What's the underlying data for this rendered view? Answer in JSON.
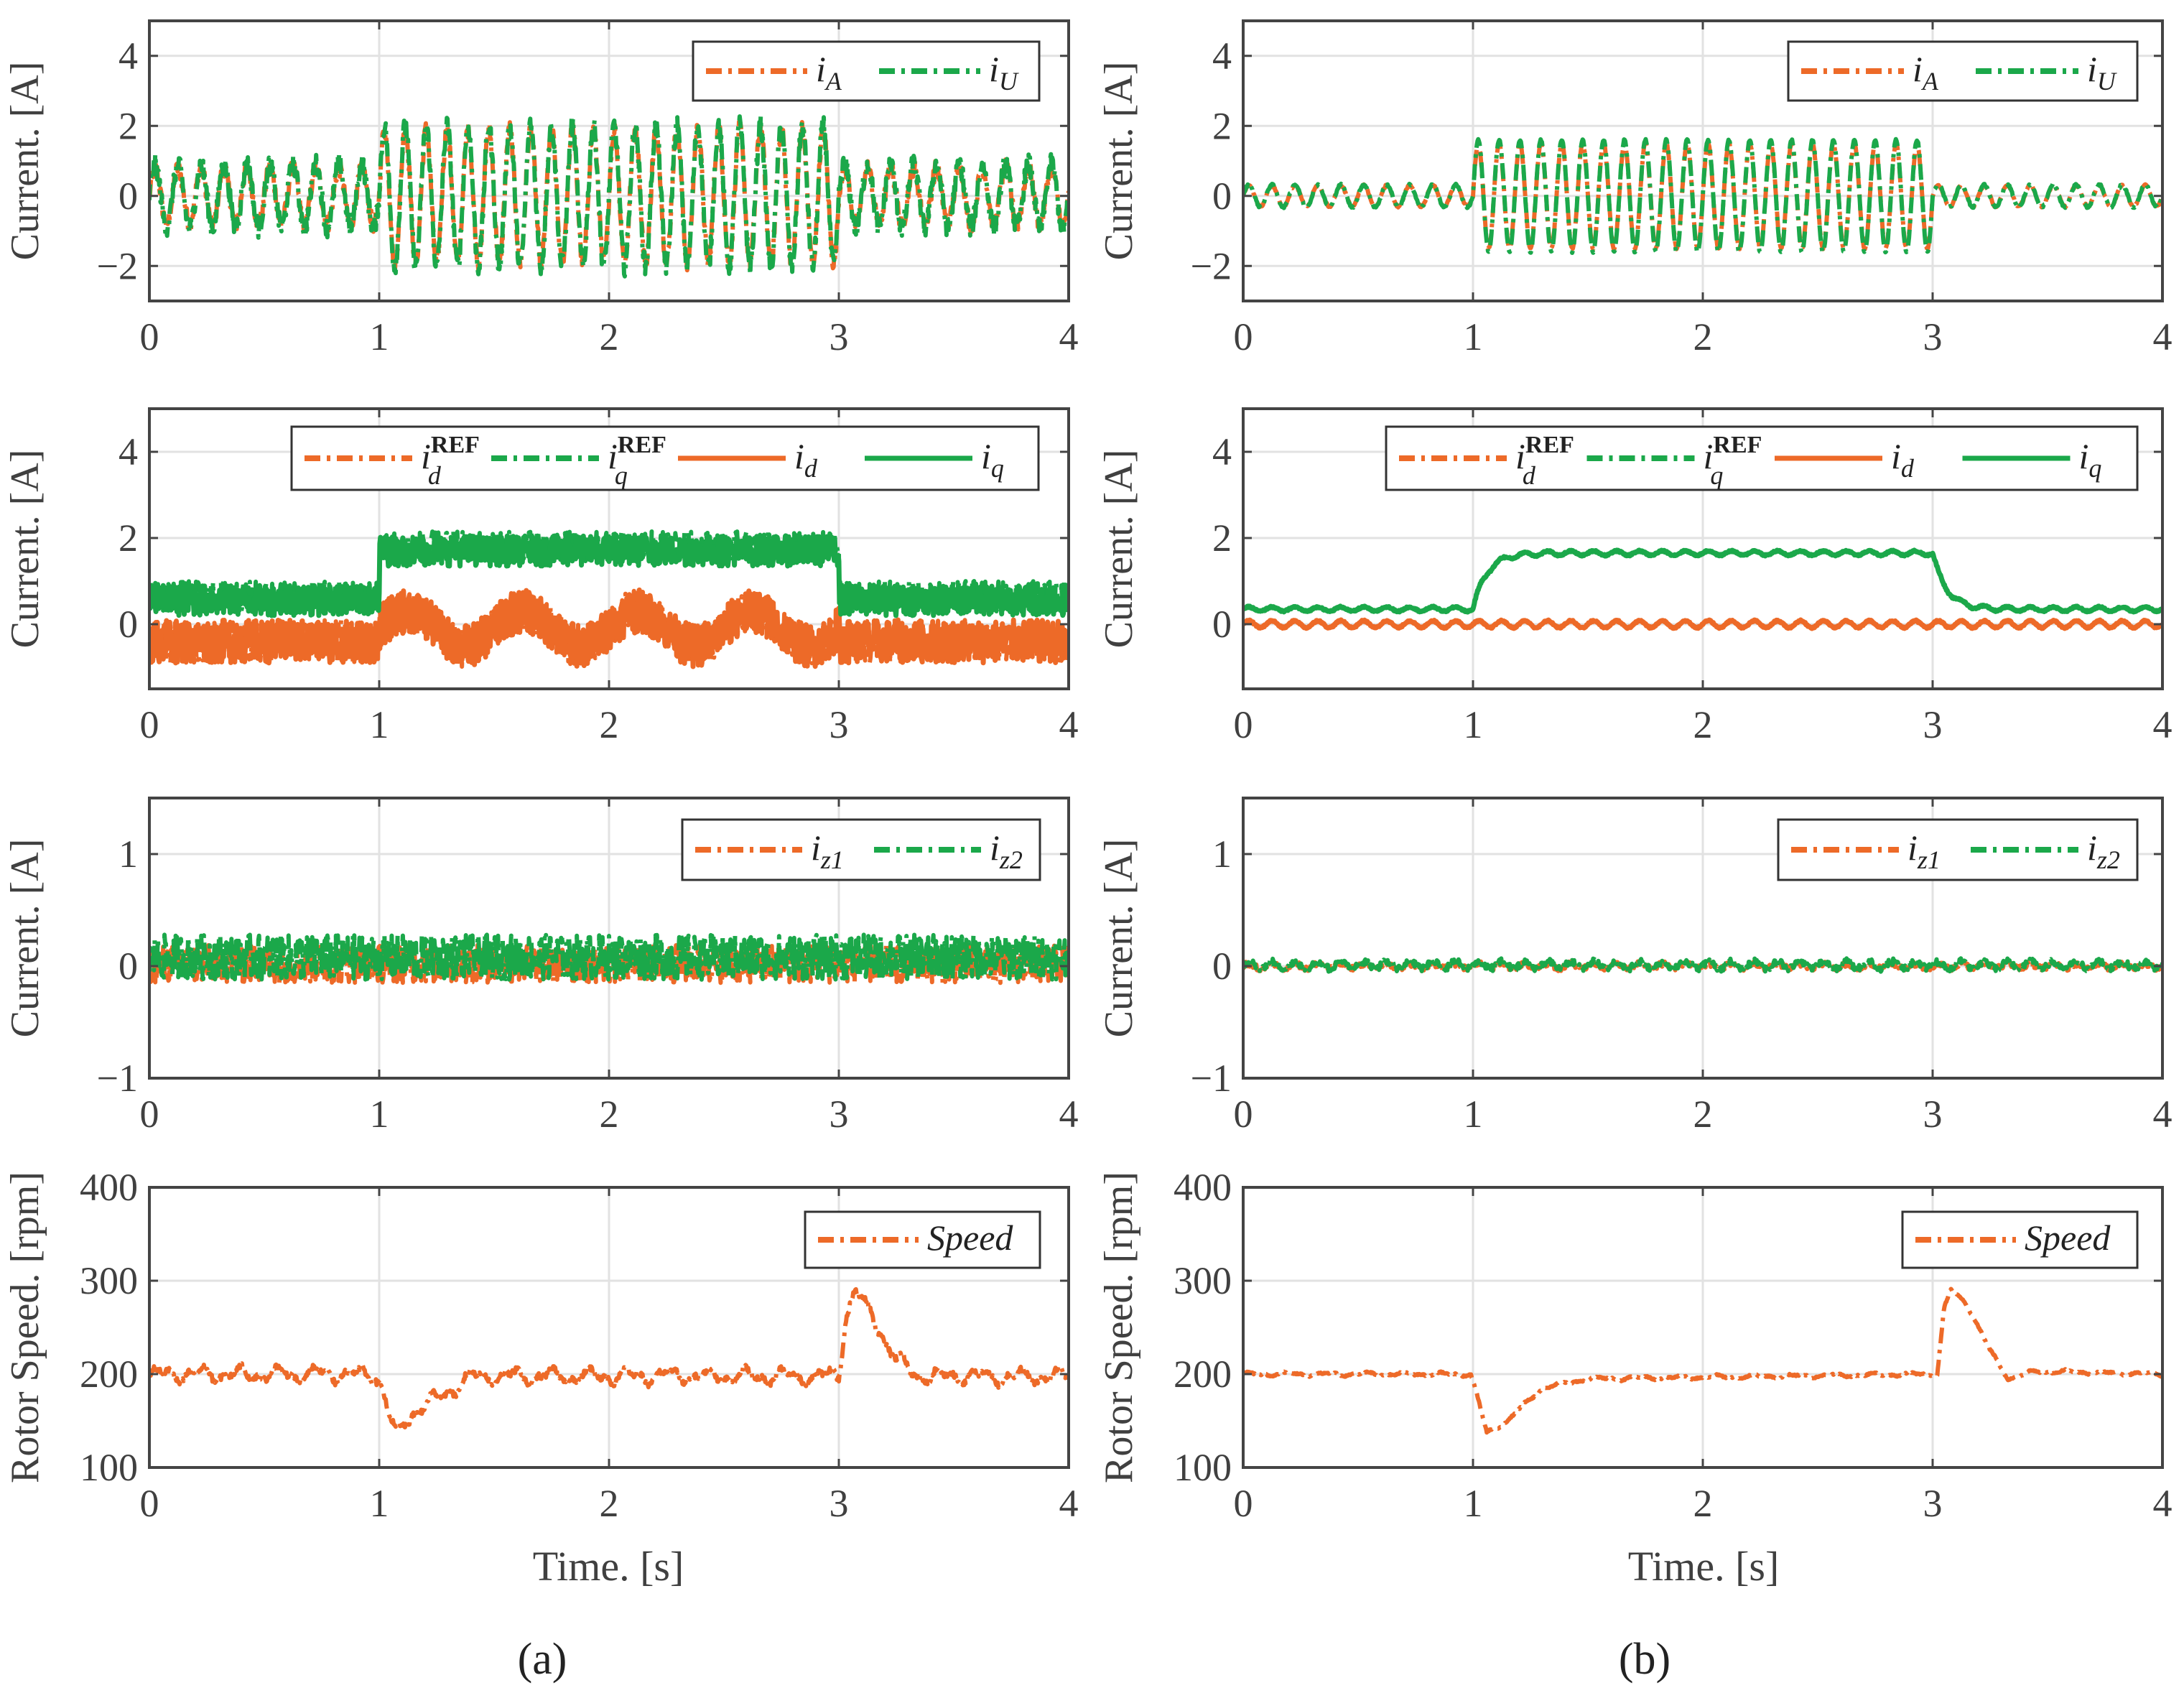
{
  "colors": {
    "orange": "#ED6A28",
    "green": "#1BA84A",
    "grid": "#E2E2E2",
    "axis": "#444444"
  },
  "xlabel": "Time. [s]",
  "captions": [
    "(a)",
    "(b)"
  ],
  "chart_data": [
    {
      "id": "a1",
      "type": "line",
      "column": "a",
      "ylabel": "Current. [A]",
      "xlim": [
        0,
        4
      ],
      "xticks": [
        "0",
        "1",
        "2",
        "3",
        "4"
      ],
      "ylim": [
        -3,
        5
      ],
      "yticks": [
        -2,
        0,
        2,
        4
      ],
      "ytick_labels": [
        "−2",
        "0",
        "2",
        "4"
      ],
      "grid": true,
      "legend": "top-right",
      "series": [
        {
          "name": "i_A",
          "label": {
            "sym": "i",
            "sub": "A",
            "sup": ""
          },
          "color": "orange",
          "style": "dashdot",
          "segments": [
            {
              "t": [
                0,
                1
              ],
              "mean": 0,
              "amp": 0.8,
              "freq": 10,
              "noise": 0.25
            },
            {
              "t": [
                1,
                3
              ],
              "mean": 0,
              "amp": 1.9,
              "freq": 11,
              "noise": 0.25
            },
            {
              "t": [
                3,
                4
              ],
              "mean": 0,
              "amp": 0.8,
              "freq": 10,
              "noise": 0.25
            }
          ]
        },
        {
          "name": "i_U",
          "label": {
            "sym": "i",
            "sub": "U",
            "sup": ""
          },
          "color": "green",
          "style": "dashdot",
          "segments": [
            {
              "t": [
                0,
                1
              ],
              "mean": 0,
              "amp": 0.9,
              "freq": 10,
              "noise": 0.3
            },
            {
              "t": [
                1,
                3
              ],
              "mean": 0,
              "amp": 2.0,
              "freq": 11,
              "noise": 0.3
            },
            {
              "t": [
                3,
                4
              ],
              "mean": 0,
              "amp": 0.9,
              "freq": 10,
              "noise": 0.3
            }
          ]
        }
      ]
    },
    {
      "id": "b1",
      "type": "line",
      "column": "b",
      "ylabel": "Current. [A]",
      "xlim": [
        0,
        4
      ],
      "xticks": [
        "0",
        "1",
        "2",
        "3",
        "4"
      ],
      "ylim": [
        -3,
        5
      ],
      "yticks": [
        -2,
        0,
        2,
        4
      ],
      "ytick_labels": [
        "−2",
        "0",
        "2",
        "4"
      ],
      "grid": true,
      "legend": "top-right",
      "series": [
        {
          "name": "i_A",
          "label": {
            "sym": "i",
            "sub": "A",
            "sup": ""
          },
          "color": "orange",
          "style": "dashdot",
          "segments": [
            {
              "t": [
                0,
                1
              ],
              "mean": 0,
              "amp": 0.3,
              "freq": 10,
              "noise": 0.03
            },
            {
              "t": [
                1,
                3
              ],
              "mean": 0,
              "amp": 1.5,
              "freq": 11,
              "noise": 0.03
            },
            {
              "t": [
                3,
                4
              ],
              "mean": 0,
              "amp": 0.3,
              "freq": 10,
              "noise": 0.03
            }
          ]
        },
        {
          "name": "i_U",
          "label": {
            "sym": "i",
            "sub": "U",
            "sup": ""
          },
          "color": "green",
          "style": "dashdot",
          "segments": [
            {
              "t": [
                0,
                1
              ],
              "mean": 0,
              "amp": 0.32,
              "freq": 10,
              "noise": 0.03
            },
            {
              "t": [
                1,
                3
              ],
              "mean": 0,
              "amp": 1.6,
              "freq": 11,
              "noise": 0.03
            },
            {
              "t": [
                3,
                4
              ],
              "mean": 0,
              "amp": 0.32,
              "freq": 10,
              "noise": 0.03
            }
          ]
        }
      ]
    },
    {
      "id": "a2",
      "type": "line",
      "column": "a",
      "ylabel": "Current. [A]",
      "xlim": [
        0,
        4
      ],
      "xticks": [
        "0",
        "1",
        "2",
        "3",
        "4"
      ],
      "ylim": [
        -1.5,
        5
      ],
      "yticks": [
        0,
        2,
        4
      ],
      "ytick_labels": [
        "0",
        "2",
        "4"
      ],
      "grid": true,
      "legend": "top-right",
      "series": [
        {
          "name": "i_d^REF",
          "label": {
            "sym": "i",
            "sub": "d",
            "sup": "REF"
          },
          "color": "orange",
          "style": "dashdot",
          "segments": [
            {
              "t": [
                0,
                1
              ],
              "mean": -0.4,
              "amp": 0,
              "freq": 0,
              "noise": 0.5
            },
            {
              "t": [
                1,
                3
              ],
              "mean": -0.1,
              "amp": 0.4,
              "freq": 2,
              "noise": 0.5
            },
            {
              "t": [
                3,
                4
              ],
              "mean": -0.4,
              "amp": 0,
              "freq": 0,
              "noise": 0.5
            }
          ]
        },
        {
          "name": "i_q^REF",
          "label": {
            "sym": "i",
            "sub": "q",
            "sup": "REF"
          },
          "color": "green",
          "style": "dashdot",
          "segments": [
            {
              "t": [
                0,
                1
              ],
              "mean": 0.65,
              "amp": 0,
              "freq": 0,
              "noise": 0.35
            },
            {
              "t": [
                1,
                3
              ],
              "mean": 1.8,
              "amp": 0,
              "freq": 0,
              "noise": 0.35
            },
            {
              "t": [
                3,
                4
              ],
              "mean": 0.65,
              "amp": 0,
              "freq": 0,
              "noise": 0.35
            }
          ]
        },
        {
          "name": "i_d",
          "label": {
            "sym": "i",
            "sub": "d",
            "sup": ""
          },
          "color": "orange",
          "style": "solid",
          "segments": [
            {
              "t": [
                0,
                1
              ],
              "mean": -0.4,
              "amp": 0,
              "freq": 0,
              "noise": 0.5
            },
            {
              "t": [
                1,
                3
              ],
              "mean": -0.1,
              "amp": 0.4,
              "freq": 2,
              "noise": 0.5
            },
            {
              "t": [
                3,
                4
              ],
              "mean": -0.4,
              "amp": 0,
              "freq": 0,
              "noise": 0.5
            }
          ]
        },
        {
          "name": "i_q",
          "label": {
            "sym": "i",
            "sub": "q",
            "sup": ""
          },
          "color": "green",
          "style": "solid",
          "segments": [
            {
              "t": [
                0,
                1
              ],
              "mean": 0.55,
              "amp": 0,
              "freq": 0,
              "noise": 0.35
            },
            {
              "t": [
                1,
                3
              ],
              "mean": 1.7,
              "amp": 0,
              "freq": 0,
              "noise": 0.35
            },
            {
              "t": [
                3,
                4
              ],
              "mean": 0.55,
              "amp": 0,
              "freq": 0,
              "noise": 0.35
            }
          ]
        }
      ]
    },
    {
      "id": "b2",
      "type": "line",
      "column": "b",
      "ylabel": "Current. [A]",
      "xlim": [
        0,
        4
      ],
      "xticks": [
        "0",
        "1",
        "2",
        "3",
        "4"
      ],
      "ylim": [
        -1.5,
        5
      ],
      "yticks": [
        0,
        2,
        4
      ],
      "ytick_labels": [
        "0",
        "2",
        "4"
      ],
      "grid": true,
      "legend": "top-right",
      "series": [
        {
          "name": "i_d^REF",
          "label": {
            "sym": "i",
            "sub": "d",
            "sup": "REF"
          },
          "color": "orange",
          "style": "dashdot",
          "segments": [
            {
              "t": [
                0,
                4
              ],
              "mean": 0,
              "amp": 0.08,
              "freq": 10,
              "noise": 0.02
            }
          ]
        },
        {
          "name": "i_q^REF",
          "label": {
            "sym": "i",
            "sub": "q",
            "sup": "REF"
          },
          "color": "green",
          "style": "dashdot",
          "segments": [
            {
              "t": [
                0,
                1
              ],
              "mean": 0.35,
              "amp": 0.05,
              "freq": 10,
              "noise": 0.02
            },
            {
              "t": [
                1,
                3
              ],
              "mean": 1.65,
              "amp": 0.05,
              "freq": 10,
              "noise": 0.02,
              "rise": 0.15
            },
            {
              "t": [
                3,
                4
              ],
              "mean": 0.35,
              "amp": 0.05,
              "freq": 10,
              "noise": 0.02,
              "rise": 0.15
            }
          ]
        },
        {
          "name": "i_d",
          "label": {
            "sym": "i",
            "sub": "d",
            "sup": ""
          },
          "color": "orange",
          "style": "solid",
          "segments": [
            {
              "t": [
                0,
                4
              ],
              "mean": 0,
              "amp": 0.08,
              "freq": 10,
              "noise": 0.02
            }
          ]
        },
        {
          "name": "i_q",
          "label": {
            "sym": "i",
            "sub": "q",
            "sup": ""
          },
          "color": "green",
          "style": "solid",
          "segments": [
            {
              "t": [
                0,
                1
              ],
              "mean": 0.35,
              "amp": 0.05,
              "freq": 10,
              "noise": 0.02
            },
            {
              "t": [
                1,
                3
              ],
              "mean": 1.65,
              "amp": 0.05,
              "freq": 10,
              "noise": 0.02,
              "rise": 0.15
            },
            {
              "t": [
                3,
                4
              ],
              "mean": 0.35,
              "amp": 0.05,
              "freq": 10,
              "noise": 0.02,
              "rise": 0.15
            }
          ]
        }
      ]
    },
    {
      "id": "a3",
      "type": "line",
      "column": "a",
      "ylabel": "Current. [A]",
      "xlim": [
        0,
        4
      ],
      "xticks": [
        "0",
        "1",
        "2",
        "3",
        "4"
      ],
      "ylim": [
        -1,
        1.5
      ],
      "yticks": [
        -1,
        0,
        1
      ],
      "ytick_labels": [
        "−1",
        "0",
        "1"
      ],
      "grid": true,
      "legend": "top-right",
      "series": [
        {
          "name": "i_z1",
          "label": {
            "sym": "i",
            "sub": "z1",
            "sup": ""
          },
          "color": "orange",
          "style": "dashdot",
          "segments": [
            {
              "t": [
                0,
                4
              ],
              "mean": 0.02,
              "amp": 0,
              "freq": 0,
              "noise": 0.17
            }
          ]
        },
        {
          "name": "i_z2",
          "label": {
            "sym": "i",
            "sub": "z2",
            "sup": ""
          },
          "color": "green",
          "style": "dashdot",
          "segments": [
            {
              "t": [
                0,
                4
              ],
              "mean": 0.08,
              "amp": 0,
              "freq": 0,
              "noise": 0.2
            }
          ]
        }
      ]
    },
    {
      "id": "b3",
      "type": "line",
      "column": "b",
      "ylabel": "Current. [A]",
      "xlim": [
        0,
        4
      ],
      "xticks": [
        "0",
        "1",
        "2",
        "3",
        "4"
      ],
      "ylim": [
        -1,
        1.5
      ],
      "yticks": [
        -1,
        0,
        1
      ],
      "ytick_labels": [
        "−1",
        "0",
        "1"
      ],
      "grid": true,
      "legend": "top-right",
      "series": [
        {
          "name": "i_z1",
          "label": {
            "sym": "i",
            "sub": "z1",
            "sup": ""
          },
          "color": "orange",
          "style": "dashdot",
          "segments": [
            {
              "t": [
                0,
                4
              ],
              "mean": 0.0,
              "amp": 0.02,
              "freq": 10,
              "noise": 0.025
            }
          ]
        },
        {
          "name": "i_z2",
          "label": {
            "sym": "i",
            "sub": "z2",
            "sup": ""
          },
          "color": "green",
          "style": "dashdot",
          "segments": [
            {
              "t": [
                0,
                4
              ],
              "mean": 0.01,
              "amp": 0.03,
              "freq": 10,
              "noise": 0.03
            }
          ]
        }
      ]
    },
    {
      "id": "a4",
      "type": "line",
      "column": "a",
      "ylabel": "Rotor Speed. [rpm]",
      "xlim": [
        0,
        4
      ],
      "xticks": [
        "0",
        "1",
        "2",
        "3",
        "4"
      ],
      "ylim": [
        100,
        400
      ],
      "yticks": [
        100,
        200,
        300,
        400
      ],
      "ytick_labels": [
        "100",
        "200",
        "300",
        "400"
      ],
      "grid": true,
      "legend": "top-right",
      "series": [
        {
          "name": "Speed",
          "label": {
            "sym": "Speed",
            "sub": "",
            "sup": ""
          },
          "color": "orange",
          "style": "dashdot",
          "noise": 6,
          "points": [
            [
              0,
              200
            ],
            [
              0.98,
              200
            ],
            [
              1.02,
              180
            ],
            [
              1.07,
              133
            ],
            [
              1.15,
              160
            ],
            [
              1.3,
              180
            ],
            [
              1.4,
              198
            ],
            [
              2.95,
              198
            ],
            [
              3.0,
              200
            ],
            [
              3.03,
              260
            ],
            [
              3.07,
              290
            ],
            [
              3.15,
              260
            ],
            [
              3.25,
              215
            ],
            [
              3.35,
              198
            ],
            [
              4,
              197
            ]
          ]
        }
      ]
    },
    {
      "id": "b4",
      "type": "line",
      "column": "b",
      "ylabel": "Rotor Speed. [rpm]",
      "xlim": [
        0,
        4
      ],
      "xticks": [
        "0",
        "1",
        "2",
        "3",
        "4"
      ],
      "ylim": [
        100,
        400
      ],
      "yticks": [
        100,
        200,
        300,
        400
      ],
      "ytick_labels": [
        "100",
        "200",
        "300",
        "400"
      ],
      "grid": true,
      "legend": "top-right",
      "series": [
        {
          "name": "Speed",
          "label": {
            "sym": "Speed",
            "sub": "",
            "sup": ""
          },
          "color": "orange",
          "style": "dashdot",
          "noise": 1.5,
          "points": [
            [
              0,
              200
            ],
            [
              0.99,
              200
            ],
            [
              1.02,
              175
            ],
            [
              1.06,
              137
            ],
            [
              1.15,
              150
            ],
            [
              1.3,
              185
            ],
            [
              1.5,
              195
            ],
            [
              2.98,
              200
            ],
            [
              3.02,
              200
            ],
            [
              3.05,
              270
            ],
            [
              3.08,
              290
            ],
            [
              3.15,
              275
            ],
            [
              3.25,
              225
            ],
            [
              3.33,
              195
            ],
            [
              3.45,
              203
            ],
            [
              4,
              200
            ]
          ]
        }
      ]
    }
  ]
}
